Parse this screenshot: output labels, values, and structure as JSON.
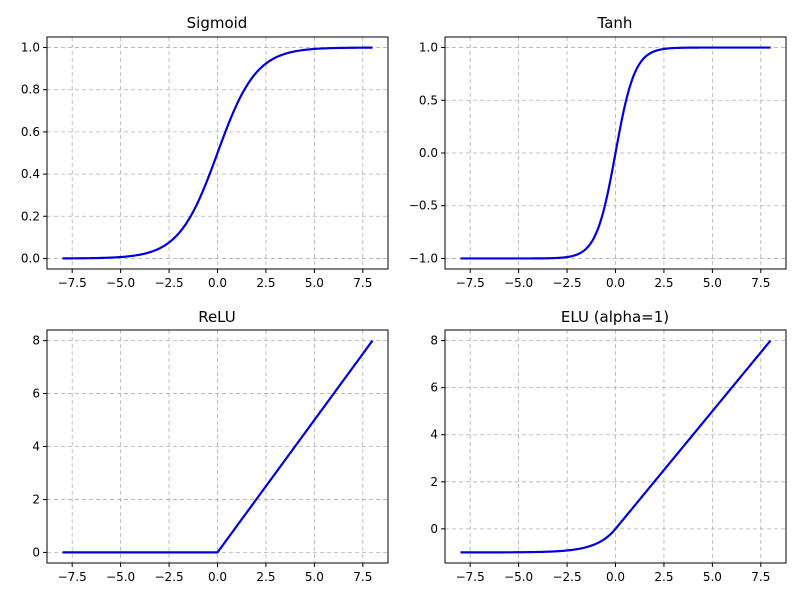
{
  "figure": {
    "line_color": "#0000dd",
    "grid": true,
    "grid_style": "dashed"
  },
  "chart_data": [
    {
      "type": "line",
      "title": "Sigmoid",
      "function": "sigmoid",
      "xlim": [
        -8.8,
        8.8
      ],
      "ylim": [
        -0.05,
        1.05
      ],
      "x": [
        -8,
        -7,
        -6,
        -5,
        -4,
        -3,
        -2.5,
        -2,
        -1.5,
        -1,
        -0.5,
        0,
        0.5,
        1,
        1.5,
        2,
        2.5,
        3,
        4,
        5,
        6,
        7,
        8
      ],
      "series": [
        {
          "values": [
            0.0003,
            0.0009,
            0.0025,
            0.0067,
            0.018,
            0.047,
            0.076,
            0.119,
            0.182,
            0.269,
            0.378,
            0.5,
            0.622,
            0.731,
            0.818,
            0.881,
            0.924,
            0.953,
            0.982,
            0.993,
            0.998,
            0.999,
            1.0
          ]
        }
      ],
      "xticks": [
        -7.5,
        -5.0,
        -2.5,
        0.0,
        2.5,
        5.0,
        7.5
      ],
      "xtick_labels": [
        "−7.5",
        "−5.0",
        "−2.5",
        "0.0",
        "2.5",
        "5.0",
        "7.5"
      ],
      "yticks": [
        0.0,
        0.2,
        0.4,
        0.6,
        0.8,
        1.0
      ],
      "ytick_labels": [
        "0.0",
        "0.2",
        "0.4",
        "0.6",
        "0.8",
        "1.0"
      ]
    },
    {
      "type": "line",
      "title": "Tanh",
      "function": "tanh",
      "xlim": [
        -8.8,
        8.8
      ],
      "ylim": [
        -1.1,
        1.1
      ],
      "x": [
        -8,
        -6,
        -4,
        -3,
        -2,
        -1.5,
        -1,
        -0.5,
        0,
        0.5,
        1,
        1.5,
        2,
        3,
        4,
        6,
        8
      ],
      "series": [
        {
          "values": [
            -1.0,
            -1.0,
            -0.999,
            -0.995,
            -0.964,
            -0.905,
            -0.762,
            -0.462,
            0.0,
            0.462,
            0.762,
            0.905,
            0.964,
            0.995,
            0.999,
            1.0,
            1.0
          ]
        }
      ],
      "xticks": [
        -7.5,
        -5.0,
        -2.5,
        0.0,
        2.5,
        5.0,
        7.5
      ],
      "xtick_labels": [
        "−7.5",
        "−5.0",
        "−2.5",
        "0.0",
        "2.5",
        "5.0",
        "7.5"
      ],
      "yticks": [
        -1.0,
        -0.5,
        0.0,
        0.5,
        1.0
      ],
      "ytick_labels": [
        "−1.0",
        "−0.5",
        "0.0",
        "0.5",
        "1.0"
      ]
    },
    {
      "type": "line",
      "title": "ReLU",
      "function": "relu",
      "xlim": [
        -8.8,
        8.8
      ],
      "ylim": [
        -0.4,
        8.4
      ],
      "x": [
        -8,
        -4,
        0,
        4,
        8
      ],
      "series": [
        {
          "values": [
            0,
            0,
            0,
            4,
            8
          ]
        }
      ],
      "xticks": [
        -7.5,
        -5.0,
        -2.5,
        0.0,
        2.5,
        5.0,
        7.5
      ],
      "xtick_labels": [
        "−7.5",
        "−5.0",
        "−2.5",
        "0.0",
        "2.5",
        "5.0",
        "7.5"
      ],
      "yticks": [
        0,
        2,
        4,
        6,
        8
      ],
      "ytick_labels": [
        "0",
        "2",
        "4",
        "6",
        "8"
      ]
    },
    {
      "type": "line",
      "title": "ELU (alpha=1)",
      "function": "elu",
      "xlim": [
        -8.8,
        8.8
      ],
      "ylim": [
        -1.45,
        8.45
      ],
      "x": [
        -8,
        -6,
        -4,
        -3,
        -2,
        -1,
        -0.5,
        0,
        2,
        4,
        6,
        8
      ],
      "series": [
        {
          "values": [
            -1.0,
            -0.998,
            -0.982,
            -0.95,
            -0.865,
            -0.632,
            -0.393,
            0,
            2,
            4,
            6,
            8
          ]
        }
      ],
      "xticks": [
        -7.5,
        -5.0,
        -2.5,
        0.0,
        2.5,
        5.0,
        7.5
      ],
      "xtick_labels": [
        "−7.5",
        "−5.0",
        "−2.5",
        "0.0",
        "2.5",
        "5.0",
        "7.5"
      ],
      "yticks": [
        0,
        2,
        4,
        6,
        8
      ],
      "ytick_labels": [
        "0",
        "2",
        "4",
        "6",
        "8"
      ]
    }
  ]
}
